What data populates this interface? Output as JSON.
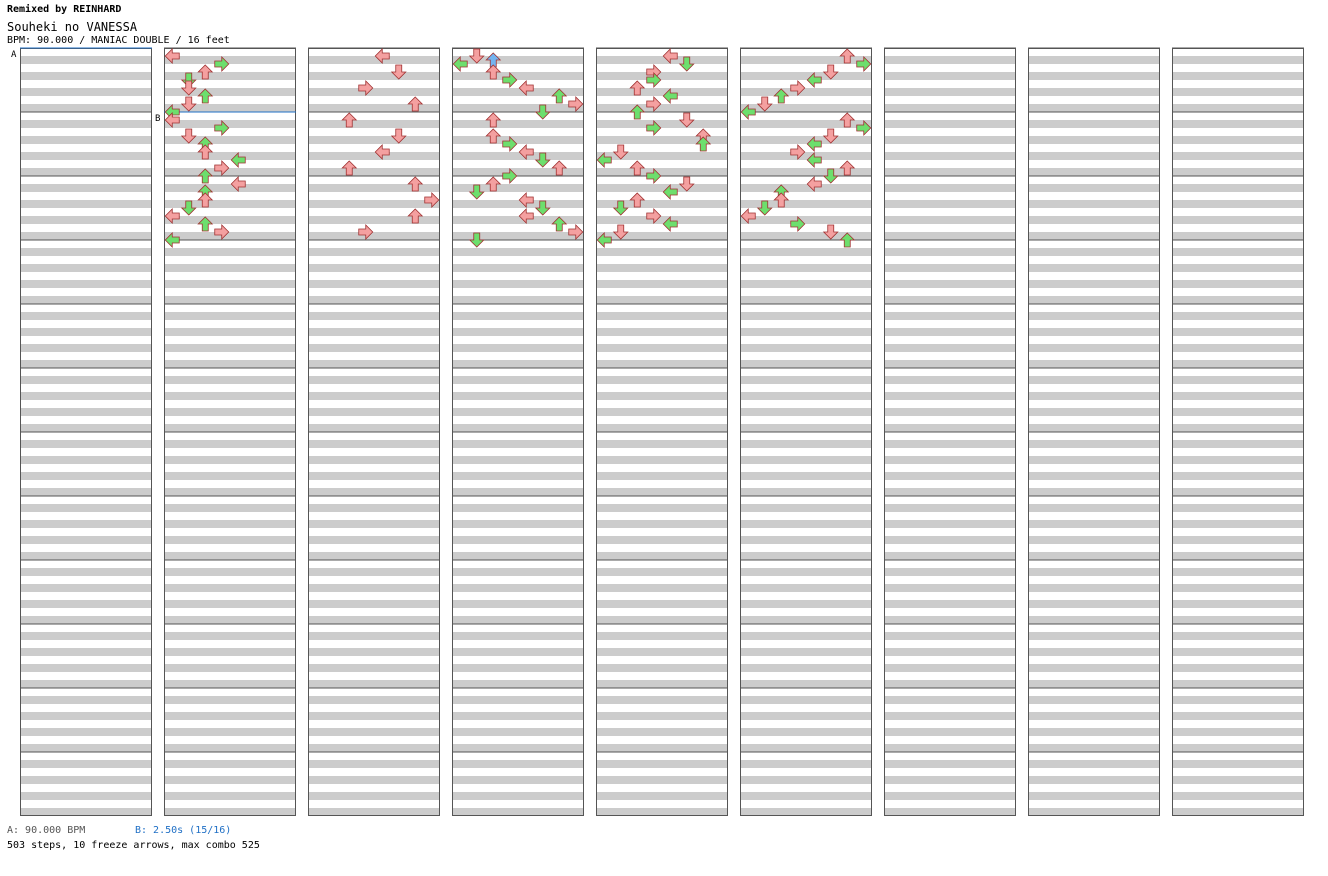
{
  "header": {
    "remix_credit": "Remixed by REINHARD",
    "song_title": "Souheki no VANESSA",
    "chart_info": "BPM: 90.000 / MANIAC DOUBLE / 16 feet"
  },
  "footer": {
    "legend_a": "A: 90.000 BPM",
    "legend_b": "B: 2.50s (15/16)",
    "stats": "503 steps, 10 freeze arrows, max combo 525"
  },
  "colors": {
    "quarter": "#f4a0a0",
    "eighth": "#6ddf6d",
    "sixteenth": "#74b4f0",
    "freeze_body": "#c8f0c8",
    "stripe": "#cccccc",
    "marker_line": "#1f6fc5"
  },
  "chart_data": {
    "type": "stepchart",
    "title": "Souheki no VANESSA",
    "mode": "MANIAC DOUBLE",
    "feet": 16,
    "bpm": 90,
    "columns": 9,
    "measures_per_column": 12,
    "panels": [
      "left",
      "down",
      "up",
      "right",
      "left",
      "down",
      "up",
      "right"
    ],
    "markers": [
      {
        "label": "A",
        "column": 0,
        "beat": 0
      },
      {
        "label": "B",
        "column": 1,
        "beat": 4
      }
    ],
    "notes": [
      [
        1,
        0,
        0
      ],
      [
        1,
        0.5,
        3
      ],
      [
        1,
        1,
        2
      ],
      [
        1,
        1.5,
        1
      ],
      [
        1,
        2,
        1
      ],
      [
        1,
        2.5,
        2
      ],
      [
        1,
        3,
        1
      ],
      [
        1,
        3.5,
        0
      ],
      [
        1,
        4,
        0
      ],
      [
        1,
        4.5,
        3
      ],
      [
        1,
        5,
        1
      ],
      [
        1,
        5.5,
        2
      ],
      [
        1,
        6,
        2
      ],
      [
        1,
        6.5,
        4
      ],
      [
        1,
        7,
        3
      ],
      [
        1,
        7.5,
        2
      ],
      [
        1,
        8,
        4
      ],
      [
        1,
        8.5,
        2
      ],
      [
        1,
        9,
        2
      ],
      [
        1,
        9.5,
        1
      ],
      [
        1,
        10,
        0
      ],
      [
        1,
        10.5,
        2
      ],
      [
        1,
        11,
        3
      ],
      [
        1,
        11.5,
        0
      ],
      [
        2,
        0,
        4
      ],
      [
        2,
        1,
        5
      ],
      [
        2,
        2,
        3
      ],
      [
        2,
        3,
        6
      ],
      [
        2,
        4,
        2
      ],
      [
        2,
        5,
        5
      ],
      [
        2,
        6,
        4
      ],
      [
        2,
        7,
        2
      ],
      [
        2,
        8,
        6
      ],
      [
        2,
        9,
        7
      ],
      [
        2,
        10,
        6
      ],
      [
        2,
        11,
        3
      ],
      [
        3,
        0,
        1
      ],
      [
        3,
        0.25,
        2
      ],
      [
        3,
        0.5,
        0
      ],
      [
        3,
        1,
        2
      ],
      [
        3,
        1.5,
        3
      ],
      [
        3,
        2,
        4
      ],
      [
        3,
        2.5,
        6
      ],
      [
        3,
        3,
        7
      ],
      [
        3,
        3.5,
        5
      ],
      [
        3,
        4,
        2
      ],
      [
        3,
        5,
        2
      ],
      [
        3,
        5.5,
        3
      ],
      [
        3,
        6,
        4
      ],
      [
        3,
        6.5,
        5
      ],
      [
        3,
        7,
        6
      ],
      [
        3,
        7.5,
        3
      ],
      [
        3,
        8,
        2
      ],
      [
        3,
        8.5,
        1
      ],
      [
        3,
        9,
        4
      ],
      [
        3,
        9.5,
        5
      ],
      [
        3,
        10,
        4
      ],
      [
        3,
        10.5,
        6
      ],
      [
        3,
        11,
        7
      ],
      [
        3,
        11.5,
        1
      ],
      [
        4,
        0,
        4
      ],
      [
        4,
        0.5,
        5
      ],
      [
        4,
        1,
        3
      ],
      [
        4,
        1.5,
        3
      ],
      [
        4,
        2,
        2
      ],
      [
        4,
        2.5,
        4
      ],
      [
        4,
        3,
        3
      ],
      [
        4,
        3.5,
        2
      ],
      [
        4,
        4,
        5
      ],
      [
        4,
        4.5,
        3
      ],
      [
        4,
        5,
        6
      ],
      [
        4,
        5.5,
        6
      ],
      [
        4,
        6,
        1
      ],
      [
        4,
        6.5,
        0
      ],
      [
        4,
        7,
        2
      ],
      [
        4,
        7.5,
        3
      ],
      [
        4,
        8,
        5
      ],
      [
        4,
        8.5,
        4
      ],
      [
        4,
        9,
        2
      ],
      [
        4,
        9.5,
        1
      ],
      [
        4,
        10,
        3
      ],
      [
        4,
        10.5,
        4
      ],
      [
        4,
        11,
        1
      ],
      [
        4,
        11.5,
        0
      ],
      [
        5,
        0,
        6
      ],
      [
        5,
        0.5,
        7
      ],
      [
        5,
        1,
        5
      ],
      [
        5,
        1.5,
        4
      ],
      [
        5,
        2,
        3
      ],
      [
        5,
        2.5,
        2
      ],
      [
        5,
        3,
        1
      ],
      [
        5,
        3.5,
        0
      ],
      [
        5,
        4,
        6
      ],
      [
        5,
        4.5,
        7
      ],
      [
        5,
        5,
        5
      ],
      [
        5,
        5.5,
        4
      ],
      [
        5,
        6,
        3
      ],
      [
        5,
        6.5,
        4
      ],
      [
        5,
        7,
        6
      ],
      [
        5,
        7.5,
        5
      ],
      [
        5,
        8,
        4
      ],
      [
        5,
        8.5,
        2
      ],
      [
        5,
        9,
        2
      ],
      [
        5,
        9.5,
        1
      ],
      [
        5,
        10,
        0
      ],
      [
        5,
        10.5,
        3
      ],
      [
        5,
        11,
        5
      ],
      [
        5,
        11.5,
        6
      ]
    ]
  }
}
